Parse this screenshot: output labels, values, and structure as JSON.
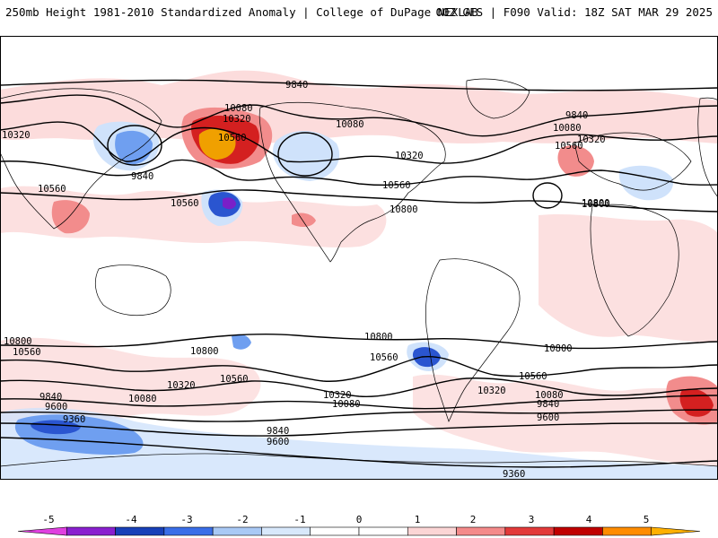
{
  "header": {
    "title": "250mb Height 1981-2010 Standardized Anomaly | College of DuPage NEXLAB",
    "run_info": "00Z GFS | F090 Valid: 18Z SAT MAR 29 2025"
  },
  "contour_labels": [
    {
      "text": "9840"
    },
    {
      "text": "10080"
    },
    {
      "text": "10320"
    },
    {
      "text": "10560"
    },
    {
      "text": "10320"
    },
    {
      "text": "10560"
    },
    {
      "text": "9840"
    },
    {
      "text": "10560"
    },
    {
      "text": "10800"
    },
    {
      "text": "10080"
    },
    {
      "text": "10320"
    },
    {
      "text": "10560"
    },
    {
      "text": "10800"
    },
    {
      "text": "9840"
    },
    {
      "text": "10080"
    },
    {
      "text": "10320"
    },
    {
      "text": "10560"
    },
    {
      "text": "10800"
    },
    {
      "text": "10800"
    },
    {
      "text": "10560"
    },
    {
      "text": "10800"
    },
    {
      "text": "10560"
    },
    {
      "text": "10320"
    },
    {
      "text": "10080"
    },
    {
      "text": "9840"
    },
    {
      "text": "9600"
    },
    {
      "text": "9360"
    },
    {
      "text": "10320"
    },
    {
      "text": "10080"
    },
    {
      "text": "9840"
    },
    {
      "text": "9600"
    },
    {
      "text": "10800"
    },
    {
      "text": "10560"
    },
    {
      "text": "10800"
    },
    {
      "text": "10560"
    },
    {
      "text": "10320"
    },
    {
      "text": "10080"
    },
    {
      "text": "9840"
    },
    {
      "text": "9600"
    },
    {
      "text": "9360"
    }
  ],
  "colorbar": {
    "ticks": [
      "-5",
      "-4",
      "-3",
      "-2",
      "-1",
      "0",
      "1",
      "2",
      "3",
      "4",
      "5"
    ],
    "colors": [
      "#e040e0",
      "#8a1fcf",
      "#1840b8",
      "#3a6ee8",
      "#a9c9f5",
      "#d8e8fb",
      "#ffffff",
      "#ffffff",
      "#fbd5d5",
      "#f48a8a",
      "#e33a3a",
      "#c00000",
      "#ff8c00",
      "#ffb000"
    ]
  },
  "colors": {
    "neg_light": "#cfe2fb",
    "neg_mid": "#6f9ff0",
    "neg_strong": "#2a55d0",
    "neg_extreme": "#7a1fc8",
    "pos_light": "#fbd6d6",
    "pos_mid": "#f28c8c",
    "pos_strong": "#d42020",
    "pos_extreme": "#f0a000"
  }
}
